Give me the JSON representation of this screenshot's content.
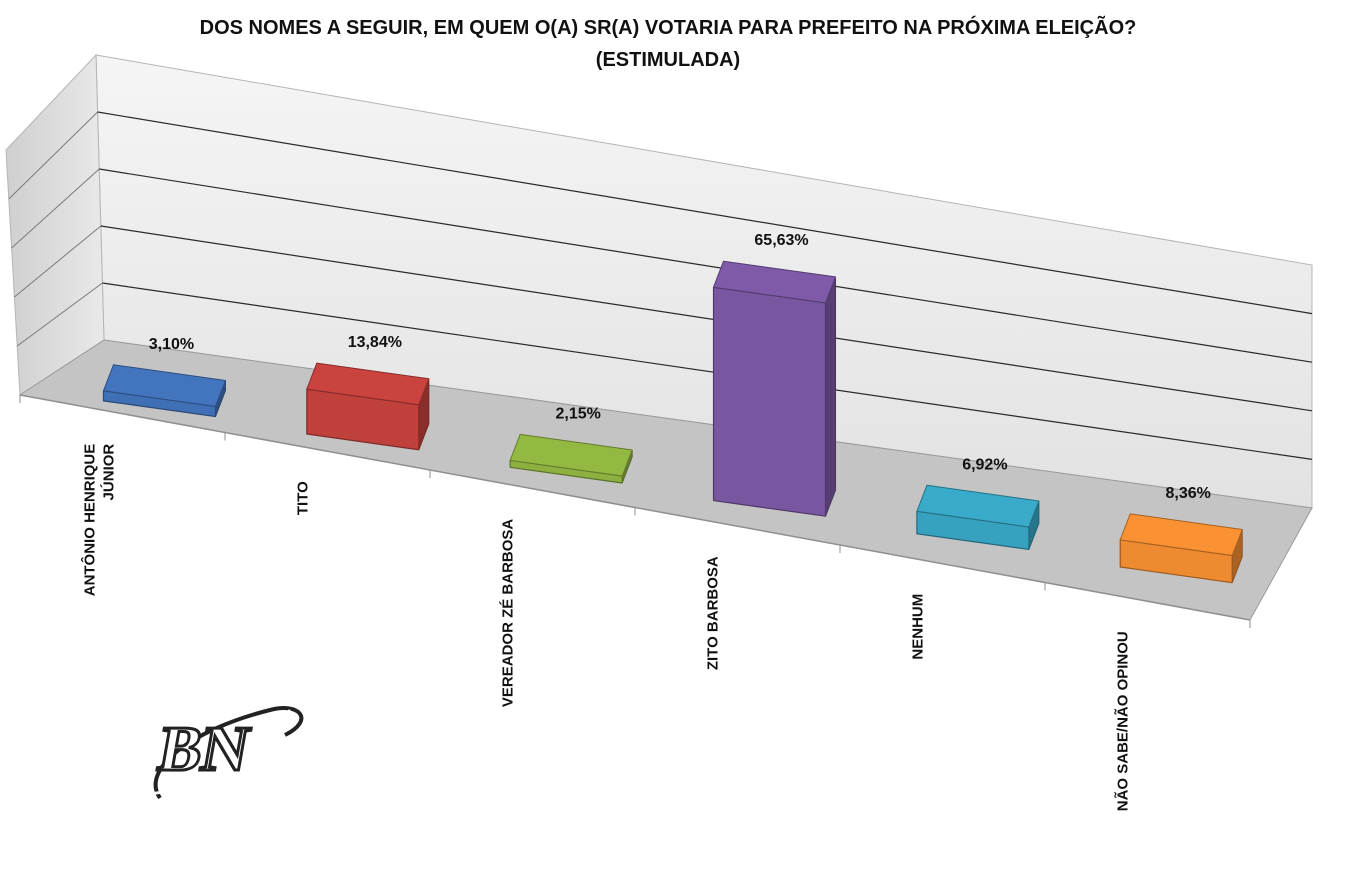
{
  "chart_data": {
    "type": "bar",
    "title_line1": "DOS NOMES A SEGUIR, EM QUEM O(A) SR(A) VOTARIA PARA PREFEITO NA PRÓXIMA ELEIÇÃO?",
    "title_line2": "(ESTIMULADA)",
    "categories": [
      [
        "ANTÔNIO HENRIQUE",
        "JÚNIOR"
      ],
      [
        "TITO"
      ],
      [
        "VEREADOR ZÉ BARBOSA"
      ],
      [
        "ZITO BARBOSA"
      ],
      [
        "NENHUM"
      ],
      [
        "NÃO SABE/NÃO OPINOU"
      ]
    ],
    "values": [
      3.1,
      13.84,
      2.15,
      65.63,
      6.92,
      8.36
    ],
    "value_labels": [
      "3,10%",
      "13,84%",
      "2,15%",
      "65,63%",
      "6,92%",
      "8,36%"
    ],
    "colors": [
      "#3f6fb5",
      "#c0403c",
      "#8db040",
      "#7856a0",
      "#36a2bf",
      "#ee8a30"
    ],
    "ylim": [
      0,
      100
    ],
    "grid": true,
    "style": "3d-column"
  },
  "watermark": {
    "text": "BN"
  }
}
